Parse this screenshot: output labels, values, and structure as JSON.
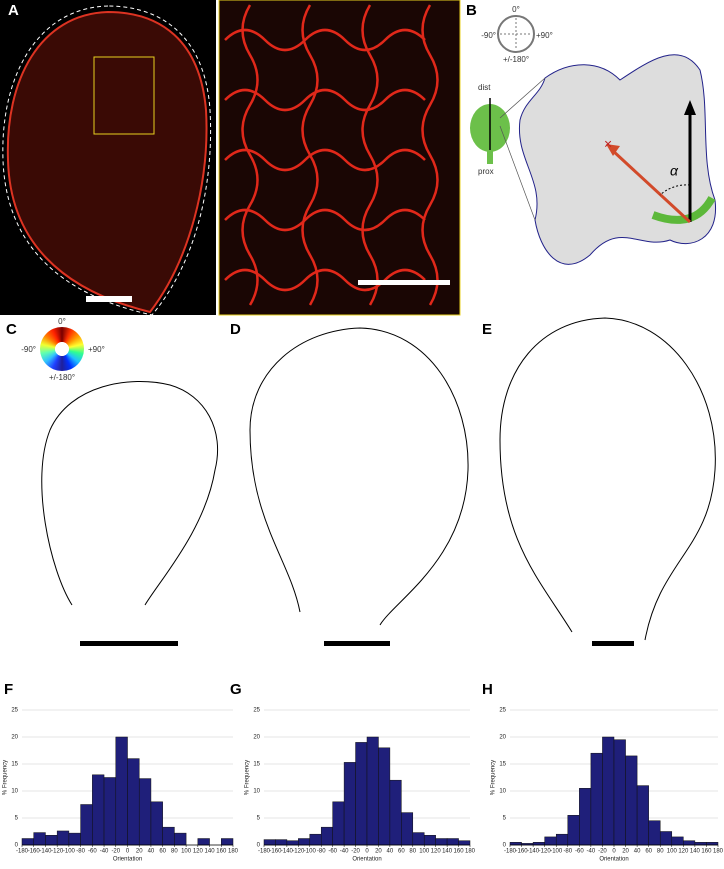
{
  "panels": [
    "A",
    "B",
    "C",
    "D",
    "E",
    "F",
    "G",
    "H"
  ],
  "compass": {
    "top": "0°",
    "left": "-90°",
    "right": "+90°",
    "bottom": "+/-180°"
  },
  "wheel": {
    "top": "0°",
    "left": "-90°",
    "right": "+90°",
    "bottom": "+/-180°"
  },
  "leaf_labels": {
    "distal": "dist",
    "proximal": "prox",
    "angle": "α"
  },
  "chart_data": [
    {
      "type": "histogram",
      "xlabel": "Orientation",
      "ylabel": "% Frequency",
      "color": "#1f1f7a",
      "bins": [
        -180,
        -160,
        -140,
        -120,
        -100,
        -80,
        -60,
        -40,
        -20,
        0,
        20,
        40,
        60,
        80,
        100,
        120,
        140,
        160,
        180
      ],
      "values": [
        1.2,
        2.3,
        1.8,
        2.6,
        2.2,
        7.5,
        13,
        12.5,
        20,
        16,
        12.3,
        8,
        3.3,
        2.2,
        0,
        1.2,
        0,
        1.2
      ],
      "xlim": [
        -180,
        180
      ],
      "xticks": [
        -180,
        -160,
        -140,
        -120,
        -100,
        -80,
        -60,
        -40,
        -20,
        0,
        20,
        40,
        60,
        80,
        100,
        120,
        140,
        160,
        180
      ],
      "ylim": [
        0,
        25
      ],
      "yticks": [
        0,
        5,
        10,
        15,
        20,
        25
      ],
      "grid": true
    },
    {
      "type": "histogram",
      "xlabel": "Orientation",
      "ylabel": "% Frequency",
      "color": "#1f1f7a",
      "bins": [
        -180,
        -160,
        -140,
        -120,
        -100,
        -80,
        -60,
        -40,
        -20,
        0,
        20,
        40,
        60,
        80,
        100,
        120,
        140,
        160,
        180
      ],
      "values": [
        1,
        1,
        0.8,
        1.2,
        2,
        3.3,
        8,
        15.3,
        19,
        20,
        18,
        12,
        6,
        2.3,
        1.8,
        1.2,
        1.2,
        0.8
      ],
      "xlim": [
        -180,
        180
      ],
      "xticks": [
        -180,
        -160,
        -140,
        -120,
        -100,
        -80,
        -60,
        -40,
        -20,
        0,
        20,
        40,
        60,
        80,
        100,
        120,
        140,
        160,
        180
      ],
      "ylim": [
        0,
        25
      ],
      "yticks": [
        0,
        5,
        10,
        15,
        20,
        25
      ],
      "grid": true
    },
    {
      "type": "histogram",
      "xlabel": "Orientation",
      "ylabel": "% Frequency",
      "color": "#1f1f7a",
      "bins": [
        -180,
        -160,
        -140,
        -120,
        -100,
        -80,
        -60,
        -40,
        -20,
        0,
        20,
        40,
        60,
        80,
        100,
        120,
        140,
        160,
        180
      ],
      "values": [
        0.5,
        0.3,
        0.5,
        1.5,
        2,
        5.5,
        10.5,
        17,
        20,
        19.5,
        16.5,
        11,
        4.5,
        2.5,
        1.5,
        0.8,
        0.5,
        0.5
      ],
      "xlim": [
        -180,
        180
      ],
      "xticks": [
        -180,
        -160,
        -140,
        -120,
        -100,
        -80,
        -60,
        -40,
        -20,
        0,
        20,
        40,
        60,
        80,
        100,
        120,
        140,
        160,
        180
      ],
      "ylim": [
        0,
        25
      ],
      "yticks": [
        0,
        5,
        10,
        15,
        20,
        25
      ],
      "grid": true
    }
  ]
}
